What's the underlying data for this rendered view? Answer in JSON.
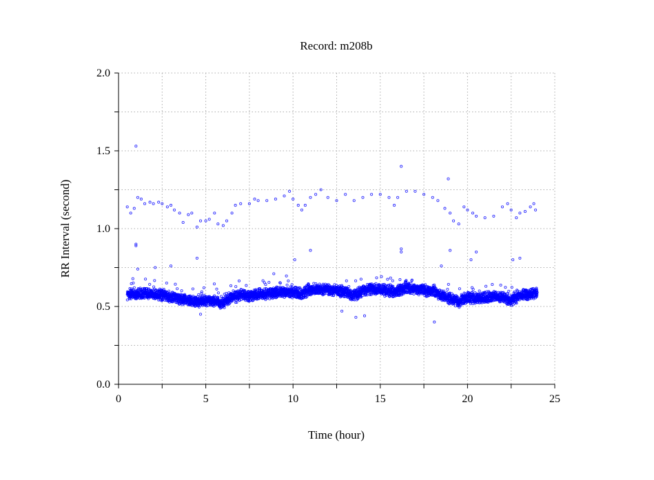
{
  "chart_data": {
    "type": "scatter",
    "title": "Record:  m208b",
    "xlabel": "Time (hour)",
    "ylabel": "RR Interval (second)",
    "xlim": [
      0,
      25
    ],
    "ylim": [
      0.0,
      2.0
    ],
    "xticks": [
      0,
      5,
      10,
      15,
      20,
      25
    ],
    "xtick_labels": [
      "0",
      "5",
      "10",
      "15",
      "20",
      "25"
    ],
    "yticks": [
      0.0,
      0.5,
      1.0,
      1.5,
      2.0
    ],
    "ytick_labels": [
      "0.0",
      "0.5",
      "1.0",
      "1.5",
      "2.0"
    ],
    "x_grid_step": 2.5,
    "y_grid_step": 0.25,
    "grid": true,
    "marker_color": "#0000ff",
    "main_band": {
      "description_note": "dense RR band center by hour",
      "band_halfwidth": 0.04,
      "x": [
        0.5,
        1,
        1.5,
        2,
        2.5,
        3,
        3.5,
        4,
        4.5,
        5,
        5.5,
        6,
        6.5,
        7,
        7.5,
        8,
        8.5,
        9,
        9.5,
        10,
        10.5,
        11,
        11.5,
        12,
        12.5,
        13,
        13.5,
        14,
        14.5,
        15,
        15.5,
        16,
        16.5,
        17,
        17.5,
        18,
        18.5,
        19,
        19.5,
        20,
        20.5,
        21,
        21.5,
        22,
        22.5,
        23,
        23.5,
        24
      ],
      "y": [
        0.58,
        0.58,
        0.58,
        0.58,
        0.57,
        0.56,
        0.55,
        0.54,
        0.53,
        0.54,
        0.53,
        0.52,
        0.56,
        0.57,
        0.57,
        0.58,
        0.58,
        0.59,
        0.59,
        0.59,
        0.58,
        0.61,
        0.61,
        0.61,
        0.6,
        0.59,
        0.57,
        0.6,
        0.61,
        0.61,
        0.6,
        0.6,
        0.62,
        0.61,
        0.6,
        0.6,
        0.57,
        0.55,
        0.53,
        0.56,
        0.55,
        0.56,
        0.56,
        0.56,
        0.54,
        0.57,
        0.58,
        0.59
      ]
    },
    "upper_band": {
      "x": [
        0.5,
        0.7,
        0.9,
        1.1,
        1.3,
        1.5,
        1.8,
        2,
        2.3,
        2.5,
        2.8,
        3,
        3.2,
        3.5,
        3.7,
        4,
        4.2,
        4.5,
        4.7,
        5,
        5.2,
        5.5,
        5.7,
        6,
        6.2,
        6.5,
        6.7,
        7,
        7.5,
        7.8,
        8,
        8.5,
        9,
        9.5,
        9.8,
        10,
        10.3,
        10.5,
        10.7,
        11,
        11.3,
        11.6,
        12,
        12.5,
        13,
        13.5,
        14,
        14.5,
        15,
        15.5,
        15.8,
        16,
        16.5,
        17,
        17.5,
        18,
        18.3,
        18.7,
        19,
        19.2,
        19.5,
        19.8,
        20,
        20.3,
        20.5,
        21,
        21.5,
        22,
        22.3,
        22.5,
        22.8,
        23,
        23.3,
        23.6,
        23.8,
        23.9
      ],
      "y": [
        1.14,
        1.1,
        1.13,
        1.2,
        1.19,
        1.16,
        1.17,
        1.16,
        1.17,
        1.16,
        1.14,
        1.15,
        1.12,
        1.1,
        1.04,
        1.09,
        1.1,
        1.01,
        1.05,
        1.05,
        1.06,
        1.1,
        1.03,
        1.02,
        1.05,
        1.1,
        1.15,
        1.16,
        1.16,
        1.19,
        1.18,
        1.18,
        1.19,
        1.21,
        1.24,
        1.19,
        1.15,
        1.12,
        1.15,
        1.2,
        1.22,
        1.25,
        1.2,
        1.18,
        1.22,
        1.18,
        1.2,
        1.22,
        1.22,
        1.2,
        1.15,
        1.2,
        1.24,
        1.24,
        1.22,
        1.2,
        1.18,
        1.13,
        1.1,
        1.05,
        1.03,
        1.14,
        1.12,
        1.1,
        1.08,
        1.07,
        1.08,
        1.14,
        1.16,
        1.12,
        1.07,
        1.1,
        1.11,
        1.14,
        1.16,
        1.12
      ]
    },
    "outliers": {
      "x": [
        1.0,
        16.2,
        18.9,
        1.0,
        1.0,
        16.2,
        16.2,
        11.0,
        20.5,
        19.0,
        4.5,
        10.1,
        18.5,
        3.0,
        22.6,
        23.0,
        13.6,
        14.1,
        18.1,
        4.7,
        12.8,
        1.1,
        2.1,
        8.9,
        20.2
      ],
      "y": [
        1.53,
        1.4,
        1.32,
        0.89,
        0.9,
        0.87,
        0.85,
        0.86,
        0.85,
        0.86,
        0.81,
        0.8,
        0.76,
        0.76,
        0.8,
        0.81,
        0.43,
        0.44,
        0.4,
        0.45,
        0.47,
        0.74,
        0.75,
        0.71,
        0.8
      ]
    }
  }
}
